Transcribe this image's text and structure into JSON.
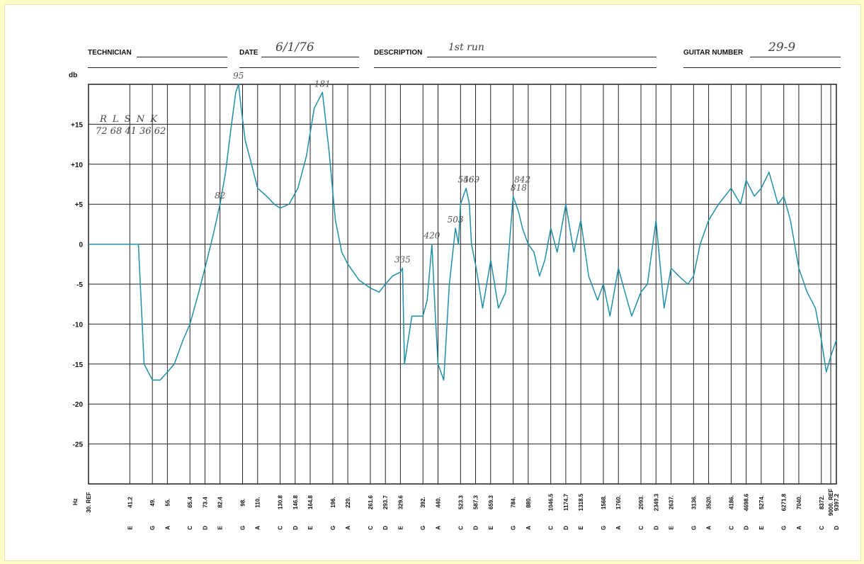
{
  "header": {
    "technician_label": "TECHNICIAN",
    "technician_value": "",
    "date_label": "DATE",
    "date_value": "6/1/76",
    "description_label": "DESCRIPTION",
    "description_value": "1st run",
    "guitar_number_label": "GUITAR NUMBER",
    "guitar_number_value": "29-9"
  },
  "annotations": {
    "rlsnk_letters": "R  L  S  N  K",
    "rlsnk_values": "72 68 41 36 62"
  },
  "chart_data": {
    "type": "line",
    "ylabel": "db",
    "xlabel": "Hz",
    "ylim": [
      -30,
      20
    ],
    "yticks": [
      "+15",
      "+10",
      "+5",
      "0",
      "-5",
      "-10",
      "-15",
      "-20",
      "-25"
    ],
    "ytick_values": [
      15,
      10,
      5,
      0,
      -5,
      -10,
      -15,
      -20,
      -25
    ],
    "x_scale": "log",
    "xlim_hz": [
      30,
      9397.2
    ],
    "grid": true,
    "freq_ticks": [
      "30. REF",
      "41.2",
      "49.",
      "55.",
      "65.4",
      "73.4",
      "82.4",
      "98.",
      "110.",
      "130.8",
      "146.8",
      "164.8",
      "196.",
      "220.",
      "261.6",
      "293.7",
      "329.6",
      "392.",
      "440.",
      "523.3",
      "587.3",
      "659.3",
      "784.",
      "880.",
      "1046.5",
      "1174.7",
      "1318.5",
      "1568.",
      "1760.",
      "2093.",
      "2349.3",
      "2637.",
      "3136.",
      "3520.",
      "4186.",
      "4698.6",
      "5274.",
      "6271.8",
      "7040.",
      "8372.",
      "9000. REF",
      "9397.2"
    ],
    "freq_values": [
      30,
      41.2,
      49,
      55,
      65.4,
      73.4,
      82.4,
      98,
      110,
      130.8,
      146.8,
      164.8,
      196,
      220,
      261.6,
      293.7,
      329.6,
      392,
      440,
      523.3,
      587.3,
      659.3,
      784,
      880,
      1046.5,
      1174.7,
      1318.5,
      1568,
      1760,
      2093,
      2349.3,
      2637,
      3136,
      3520,
      4186,
      4698.6,
      5274,
      6271.8,
      7040,
      8372,
      9000,
      9397.2
    ],
    "note_ticks": [
      "E",
      "G",
      "A",
      "C",
      "D",
      "E",
      "G",
      "A",
      "C",
      "D",
      "E",
      "G",
      "A",
      "C",
      "D",
      "E",
      "G",
      "A",
      "C",
      "D",
      "E",
      "G",
      "A",
      "C",
      "D",
      "E",
      "G",
      "A",
      "C",
      "D",
      "E",
      "G",
      "A",
      "C",
      "D",
      "E",
      "G",
      "A",
      "C",
      "D"
    ],
    "note_freqs": [
      41.2,
      49,
      55,
      65.4,
      73.4,
      82.4,
      98,
      110,
      130.8,
      146.8,
      164.8,
      196,
      220,
      261.6,
      293.7,
      329.6,
      392,
      440,
      523.3,
      587.3,
      659.3,
      784,
      880,
      1046.5,
      1174.7,
      1318.5,
      1568,
      1760,
      2093,
      2349.3,
      2637,
      3136,
      3520,
      4186,
      4698.6,
      5274,
      6271.8,
      7040,
      8372,
      9397.2
    ],
    "series": [
      {
        "color": "#1f8fa8",
        "x": [
          30,
          35,
          40,
          42,
          44,
          46,
          49,
          52,
          55,
          58,
          62,
          65.4,
          70,
          73.4,
          78,
          82.4,
          86,
          90,
          93,
          95,
          97,
          100,
          105,
          110,
          118,
          125,
          130.8,
          140,
          150,
          160,
          170,
          181,
          190,
          200,
          210,
          220,
          240,
          261.6,
          280,
          293.7,
          310,
          329.6,
          335,
          340,
          360,
          380,
          392,
          405,
          420,
          430,
          440,
          460,
          480,
          503,
          515,
          523.3,
          546,
          560,
          569,
          590,
          620,
          660,
          700,
          740,
          784,
          818,
          842,
          880,
          920,
          960,
          1000,
          1046.5,
          1100,
          1174.7,
          1250,
          1318.5,
          1400,
          1500,
          1568,
          1650,
          1760,
          1850,
          1950,
          2093,
          2200,
          2349.3,
          2500,
          2637,
          2800,
          3000,
          3136,
          3300,
          3520,
          3800,
          4186,
          4500,
          4698.6,
          5000,
          5274,
          5600,
          6000,
          6271.8,
          6600,
          7040,
          7500,
          8000,
          8372,
          8700,
          9000,
          9200,
          9397.2
        ],
        "y": [
          0,
          0,
          0,
          0,
          0,
          -15,
          -17,
          -17,
          -16,
          -15,
          -12,
          -10,
          -6,
          -3,
          1,
          5,
          9,
          15,
          19,
          20,
          17,
          13,
          10,
          7,
          6,
          5,
          4.5,
          5,
          7,
          11,
          17,
          19,
          12,
          3,
          -1,
          -2.5,
          -4.5,
          -5.5,
          -6,
          -5,
          -4,
          -3.5,
          -3,
          -15,
          -9,
          -9,
          -9,
          -7,
          0,
          -8,
          -15,
          -17,
          -5,
          2,
          0,
          5,
          7,
          5,
          0,
          -3,
          -8,
          -2,
          -8,
          -6,
          6,
          4,
          2,
          0,
          -1,
          -4,
          -2,
          2,
          -1,
          5,
          -1,
          3,
          -4,
          -7,
          -5,
          -9,
          -3,
          -6,
          -9,
          -6,
          -5,
          3,
          -8,
          -3,
          -4,
          -5,
          -4,
          0,
          3,
          5,
          7,
          5,
          8,
          6,
          7,
          9,
          5,
          6,
          3,
          -3,
          -6,
          -8,
          -12,
          -16,
          -14,
          -13,
          -12
        ]
      }
    ],
    "data_labels": [
      {
        "text": "95",
        "x": 95,
        "y": 20
      },
      {
        "text": "181",
        "x": 181,
        "y": 19
      },
      {
        "text": "82",
        "x": 82.4,
        "y": 5
      },
      {
        "text": "335",
        "x": 335,
        "y": -3
      },
      {
        "text": "420",
        "x": 420,
        "y": 0
      },
      {
        "text": "503",
        "x": 503,
        "y": 2
      },
      {
        "text": "546",
        "x": 546,
        "y": 7
      },
      {
        "text": "569",
        "x": 569,
        "y": 7
      },
      {
        "text": "818",
        "x": 818,
        "y": 6
      },
      {
        "text": "842",
        "x": 842,
        "y": 7
      }
    ]
  }
}
